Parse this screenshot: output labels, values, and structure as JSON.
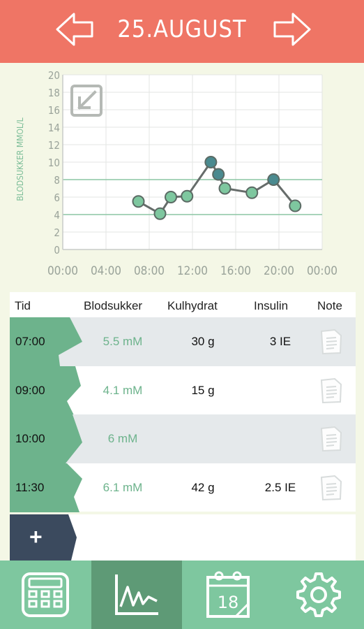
{
  "header": {
    "title": "25.AUGUST",
    "prev_icon": "arrow-left-icon",
    "next_icon": "arrow-right-icon"
  },
  "colors": {
    "header": "#ef7565",
    "accent_green": "#6db38c",
    "point_green": "#7ec79f",
    "point_teal": "#4a8a8f",
    "dark_navy": "#3b4a5e"
  },
  "chart_data": {
    "type": "line",
    "ylabel": "BLODSUKKER MMOL/L",
    "xlabel": "",
    "ylim": [
      0,
      20
    ],
    "xlim": [
      "00:00",
      "24:00"
    ],
    "y_ticks": [
      "0",
      "2",
      "4",
      "6",
      "8",
      "10",
      "12",
      "14",
      "16",
      "18",
      "20"
    ],
    "x_ticks": [
      "00:00",
      "04:00",
      "08:00",
      "12:00",
      "16:00",
      "20:00",
      "00:00"
    ],
    "target_range": [
      4,
      8
    ],
    "grid": true,
    "points": [
      {
        "x": 7.0,
        "y": 5.5,
        "kind": "green"
      },
      {
        "x": 9.0,
        "y": 4.1,
        "kind": "green"
      },
      {
        "x": 10.0,
        "y": 6.0,
        "kind": "green"
      },
      {
        "x": 11.5,
        "y": 6.1,
        "kind": "green"
      },
      {
        "x": 13.7,
        "y": 10.0,
        "kind": "teal"
      },
      {
        "x": 14.4,
        "y": 8.6,
        "kind": "teal"
      },
      {
        "x": 15.0,
        "y": 7.0,
        "kind": "green"
      },
      {
        "x": 17.5,
        "y": 6.5,
        "kind": "green"
      },
      {
        "x": 19.5,
        "y": 8.0,
        "kind": "teal"
      },
      {
        "x": 21.5,
        "y": 5.0,
        "kind": "green"
      }
    ]
  },
  "table": {
    "headers": {
      "time": "Tid",
      "blood_sugar": "Blodsukker",
      "carbs": "Kulhydrat",
      "insulin": "Insulin",
      "note": "Note"
    },
    "rows": [
      {
        "time": "07:00",
        "blood_sugar": "5.5 mM",
        "carbs": "30 g",
        "insulin": "3 IE"
      },
      {
        "time": "09:00",
        "blood_sugar": "4.1 mM",
        "carbs": "15 g",
        "insulin": ""
      },
      {
        "time": "10:00",
        "blood_sugar": "6 mM",
        "carbs": "",
        "insulin": ""
      },
      {
        "time": "11:30",
        "blood_sugar": "6.1 mM",
        "carbs": "42 g",
        "insulin": "2.5 IE"
      }
    ],
    "add_label": "+"
  },
  "nav": {
    "items": [
      {
        "icon": "calculator-icon"
      },
      {
        "icon": "chart-icon",
        "active": true
      },
      {
        "icon": "calendar-icon",
        "day": "18"
      },
      {
        "icon": "settings-gear-icon"
      }
    ]
  }
}
